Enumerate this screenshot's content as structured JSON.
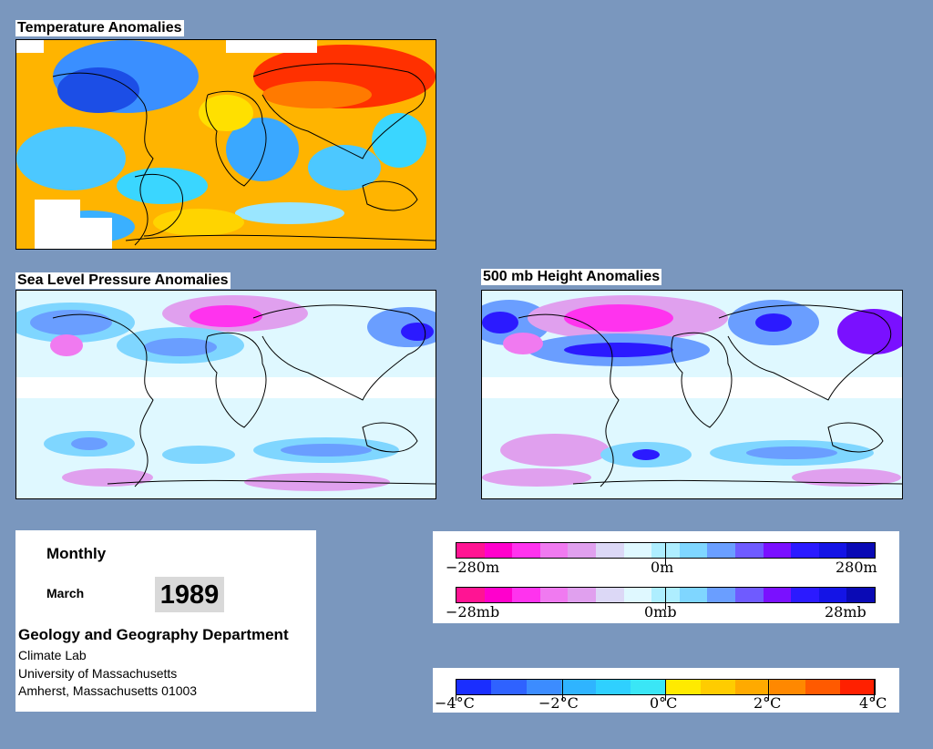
{
  "maps": {
    "temperature": {
      "title": "Temperature Anomalies"
    },
    "slp": {
      "title": "Sea Level Pressure Anomalies"
    },
    "height500": {
      "title": "500 mb Height Anomalies"
    }
  },
  "info": {
    "period": "Monthly",
    "month": "March",
    "year": "1989",
    "department": "Geology and Geography Department",
    "lab": "Climate Lab",
    "university": "University of Massachusetts",
    "address": "Amherst, Massachusetts 01003"
  },
  "legends": {
    "height": {
      "min": "−280m",
      "mid": "0m",
      "max": "280m"
    },
    "pressure": {
      "min": "−28mb",
      "mid": "0mb",
      "max": "28mb"
    },
    "temperature": {
      "l1": "−4°C",
      "l2": "−2°C",
      "l3": "0°C",
      "l4": "2°C",
      "l5": "4°C"
    }
  },
  "colors": {
    "background": "#7a97be",
    "pressure_scale": [
      "#ff1493",
      "#ff00cc",
      "#ff33ee",
      "#f07af0",
      "#e0a0ee",
      "#dcd8f6",
      "#dff8ff",
      "#aeeeff",
      "#7fd6ff",
      "#6a9eff",
      "#6f5bff",
      "#7a10ff",
      "#2b1aff",
      "#1414e6",
      "#0a0ab5"
    ],
    "temperature_scale": [
      "#1a2eff",
      "#2f62ff",
      "#3c8cff",
      "#2fb4ff",
      "#2fd0ff",
      "#3ae6f6",
      "#ffea00",
      "#ffcc00",
      "#ffaa00",
      "#ff8800",
      "#ff5a00",
      "#ff2000"
    ]
  }
}
